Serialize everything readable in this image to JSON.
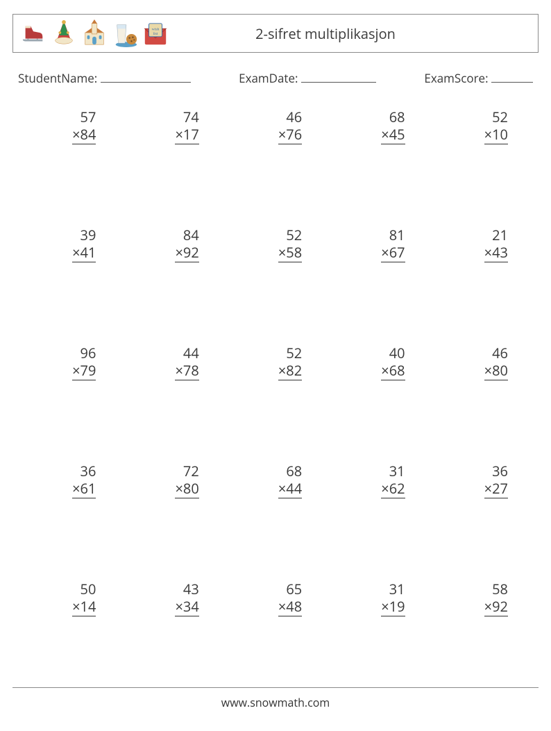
{
  "header": {
    "title": "2-sifret multiplikasjon"
  },
  "info": {
    "name_label": "StudentName:",
    "date_label": "ExamDate:",
    "score_label": "ExamScore:"
  },
  "blank_widths": {
    "name": 130,
    "date": 108,
    "score": 60
  },
  "style": {
    "font_family": "Segoe UI, Open Sans, Arial, sans-serif",
    "text_color": "#3a3a3a",
    "border_color": "#8a8a8a",
    "underline_color": "#333333",
    "background": "#ffffff",
    "title_fontsize": 20,
    "info_fontsize": 17,
    "problem_fontsize": 20
  },
  "operator": "×",
  "problems": [
    [
      {
        "a": 57,
        "b": 84
      },
      {
        "a": 74,
        "b": 17
      },
      {
        "a": 46,
        "b": 76
      },
      {
        "a": 68,
        "b": 45
      },
      {
        "a": 52,
        "b": 10
      }
    ],
    [
      {
        "a": 39,
        "b": 41
      },
      {
        "a": 84,
        "b": 92
      },
      {
        "a": 52,
        "b": 58
      },
      {
        "a": 81,
        "b": 67
      },
      {
        "a": 21,
        "b": 43
      }
    ],
    [
      {
        "a": 96,
        "b": 79
      },
      {
        "a": 44,
        "b": 78
      },
      {
        "a": 52,
        "b": 82
      },
      {
        "a": 40,
        "b": 68
      },
      {
        "a": 46,
        "b": 80
      }
    ],
    [
      {
        "a": 36,
        "b": 61
      },
      {
        "a": 72,
        "b": 80
      },
      {
        "a": 68,
        "b": 44
      },
      {
        "a": 31,
        "b": 62
      },
      {
        "a": 36,
        "b": 27
      }
    ],
    [
      {
        "a": 50,
        "b": 14
      },
      {
        "a": 43,
        "b": 34
      },
      {
        "a": 65,
        "b": 48
      },
      {
        "a": 31,
        "b": 19
      },
      {
        "a": 58,
        "b": 92
      }
    ]
  ],
  "footer": {
    "url": "www.snowmath.com"
  },
  "icons": {
    "colors": {
      "skate_blade": "#9aa7b0",
      "skate_boot": "#b73b3b",
      "hat_green": "#2f8f4e",
      "hat_red": "#c94141",
      "hat_gold": "#e0b04a",
      "church_wall": "#f2e6c8",
      "church_roof": "#c77b3b",
      "church_door": "#5aa0c8",
      "milk_glass": "#d9e8f2",
      "milk_liquid": "#f4efe2",
      "cookie": "#c98a3d",
      "plate": "#5aa0c8",
      "envelope": "#d24a43",
      "letter": "#e9d9a8",
      "letter_text": "#3a6fae"
    }
  }
}
